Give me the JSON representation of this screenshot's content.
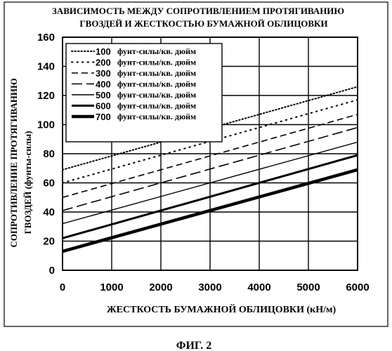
{
  "chart_data": {
    "type": "line",
    "title_line1": "ЗАВИСИМОСТЬ МЕЖДУ СОПРОТИВЛЕНИЕМ ПРОТЯГИВАНИЮ",
    "title_line2": "ГВОЗДЕЙ И ЖЕСТКОСТЬЮ БУМАЖНОЙ ОБЛИЦОВКИ",
    "xlabel": "ЖЕСТКОСТЬ БУМАЖНОЙ ОБЛИЦОВКИ (кН/м)",
    "ylabel_line1": "СОПРОТИВЛЕНИЕ ПРОТЯГИВАНИЮ",
    "ylabel_line2": "ГВОЗДЕЙ (фунты-силы)",
    "xlim": [
      0,
      6000
    ],
    "ylim": [
      0,
      160
    ],
    "x_ticks": [
      "0",
      "1000",
      "2000",
      "3000",
      "4000",
      "5000",
      "6000"
    ],
    "y_ticks": [
      "0",
      "20",
      "40",
      "60",
      "80",
      "100",
      "120",
      "140",
      "160"
    ],
    "grid": true,
    "legend_position": "top-left",
    "series": [
      {
        "name_num": "100",
        "name_unit": "фунт-силы/кв. дюйм",
        "x": [
          0,
          6000
        ],
        "values": [
          69,
          126
        ],
        "style": "dotted",
        "width": 2
      },
      {
        "name_num": "200",
        "name_unit": "фунт-силы/кв. дюйм",
        "x": [
          0,
          6000
        ],
        "values": [
          60,
          117
        ],
        "style": "dotted-sparse",
        "width": 2
      },
      {
        "name_num": "300",
        "name_unit": "фунт-силы/кв. дюйм",
        "x": [
          0,
          6000
        ],
        "values": [
          50,
          107
        ],
        "style": "dashed",
        "width": 1.6
      },
      {
        "name_num": "400",
        "name_unit": "фунт-силы/кв. дюйм",
        "x": [
          0,
          6000
        ],
        "values": [
          41,
          98
        ],
        "style": "long-dashed",
        "width": 1.6
      },
      {
        "name_num": "500",
        "name_unit": "фунт-силы/кв. дюйм",
        "x": [
          0,
          6000
        ],
        "values": [
          32,
          88
        ],
        "style": "solid",
        "width": 1.4
      },
      {
        "name_num": "600",
        "name_unit": "фунт-силы/кв. дюйм",
        "x": [
          0,
          6000
        ],
        "values": [
          22,
          79
        ],
        "style": "solid",
        "width": 3
      },
      {
        "name_num": "700",
        "name_unit": "фунт-силы/кв. дюйм",
        "x": [
          0,
          6000
        ],
        "values": [
          13,
          69
        ],
        "style": "solid",
        "width": 4.5
      }
    ]
  },
  "caption": "ФИГ. 2"
}
